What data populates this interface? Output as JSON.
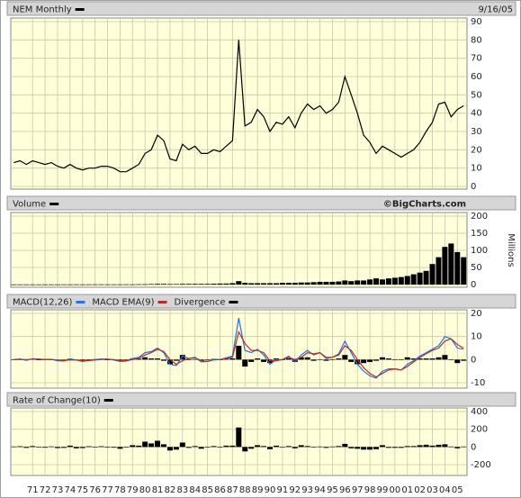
{
  "chart_data": [
    {
      "type": "line",
      "series": [
        {
          "name": "NEM Monthly",
          "color": "#000000",
          "values": [
            13,
            14,
            12,
            14,
            13,
            12,
            13,
            11,
            10,
            12,
            10,
            9,
            10,
            10,
            11,
            11,
            10,
            8,
            8,
            10,
            12,
            18,
            20,
            28,
            25,
            15,
            14,
            23,
            20,
            22,
            18,
            18,
            20,
            19,
            22,
            25,
            80,
            33,
            35,
            42,
            38,
            30,
            35,
            34,
            38,
            32,
            40,
            45,
            42,
            44,
            40,
            42,
            46,
            60,
            50,
            40,
            28,
            24,
            18,
            22,
            20,
            18,
            16,
            18,
            20,
            24,
            30,
            35,
            45,
            46,
            38,
            42,
            44
          ]
        }
      ],
      "date": "9/16/05",
      "x": [
        1969.5,
        1970,
        1970.5,
        1971,
        1971.5,
        1972,
        1972.5,
        1973,
        1973.5,
        1974,
        1974.5,
        1975,
        1975.5,
        1976,
        1976.5,
        1977,
        1977.5,
        1978,
        1978.5,
        1979,
        1979.5,
        1980,
        1980.5,
        1981,
        1981.5,
        1982,
        1982.5,
        1983,
        1983.5,
        1984,
        1984.5,
        1985,
        1985.5,
        1986,
        1986.5,
        1987,
        1987.5,
        1988,
        1988.5,
        1989,
        1989.5,
        1990,
        1990.5,
        1991,
        1991.5,
        1992,
        1992.5,
        1993,
        1993.5,
        1994,
        1994.5,
        1995,
        1995.5,
        1996,
        1996.5,
        1997,
        1997.5,
        1998,
        1998.5,
        1999,
        1999.5,
        2000,
        2000.5,
        2001,
        2001.5,
        2002,
        2002.5,
        2003,
        2003.5,
        2004,
        2004.5,
        2005,
        2005.5
      ],
      "xlim": [
        1969.4,
        2005.7
      ],
      "ylim": [
        0,
        90
      ],
      "yticks": [
        0,
        10,
        20,
        30,
        40,
        50,
        60,
        70,
        80,
        90
      ],
      "grid": true
    },
    {
      "type": "bar",
      "series": [
        {
          "name": "Volume",
          "color": "#000000",
          "values": [
            0.3,
            0.3,
            0.3,
            0.3,
            0.3,
            0.3,
            0.3,
            0.3,
            0.4,
            0.4,
            0.4,
            0.4,
            0.5,
            0.5,
            0.5,
            0.5,
            0.5,
            0.5,
            0.6,
            0.6,
            0.8,
            1,
            1.5,
            2,
            2,
            1.5,
            1.5,
            2,
            2,
            2,
            2,
            2,
            2.5,
            3,
            3,
            4,
            10,
            5,
            4,
            4,
            4,
            4,
            4,
            5,
            5,
            5,
            6,
            6,
            7,
            8,
            8,
            8,
            9,
            12,
            10,
            12,
            12,
            15,
            18,
            15,
            18,
            20,
            22,
            25,
            30,
            35,
            40,
            60,
            80,
            110,
            120,
            95,
            80
          ]
        }
      ],
      "credit": "©BigCharts.com",
      "y_label": "Millions",
      "x": [
        1969.5,
        1970,
        1970.5,
        1971,
        1971.5,
        1972,
        1972.5,
        1973,
        1973.5,
        1974,
        1974.5,
        1975,
        1975.5,
        1976,
        1976.5,
        1977,
        1977.5,
        1978,
        1978.5,
        1979,
        1979.5,
        1980,
        1980.5,
        1981,
        1981.5,
        1982,
        1982.5,
        1983,
        1983.5,
        1984,
        1984.5,
        1985,
        1985.5,
        1986,
        1986.5,
        1987,
        1987.5,
        1988,
        1988.5,
        1989,
        1989.5,
        1990,
        1990.5,
        1991,
        1991.5,
        1992,
        1992.5,
        1993,
        1993.5,
        1994,
        1994.5,
        1995,
        1995.5,
        1996,
        1996.5,
        1997,
        1997.5,
        1998,
        1998.5,
        1999,
        1999.5,
        2000,
        2000.5,
        2001,
        2001.5,
        2002,
        2002.5,
        2003,
        2003.5,
        2004,
        2004.5,
        2005,
        2005.5
      ],
      "xlim": [
        1969.4,
        2005.7
      ],
      "ylim": [
        0,
        200
      ],
      "yticks": [
        0,
        50,
        100,
        150,
        200
      ],
      "grid": true
    },
    {
      "type": "line",
      "series": [
        {
          "name": "MACD(12,26)",
          "color": "#2a6fdb",
          "values": [
            0,
            0.3,
            -0.3,
            0.4,
            0.2,
            0,
            0.1,
            -0.5,
            -0.6,
            0.3,
            -0.2,
            -0.8,
            -0.3,
            0,
            0.3,
            0.2,
            -0.2,
            -0.8,
            -0.6,
            0.5,
            1,
            3,
            3.5,
            5,
            3,
            -2,
            -2.5,
            1.5,
            0.5,
            1,
            -1,
            -0.8,
            0.2,
            0,
            0.8,
            1.5,
            18,
            4,
            3,
            4.5,
            2,
            -2,
            0,
            0,
            1.5,
            -1,
            2,
            4,
            2,
            3,
            0.5,
            1,
            2.5,
            8,
            3,
            -2,
            -5,
            -7,
            -8,
            -5,
            -4,
            -4,
            -4.5,
            -2,
            -0.5,
            1.5,
            3,
            4.5,
            6,
            10,
            9,
            5,
            4.5
          ]
        },
        {
          "name": "MACD EMA(9)",
          "color": "#b03030",
          "values": [
            0,
            0.1,
            0,
            0.2,
            0.2,
            0.1,
            0.1,
            -0.2,
            -0.4,
            -0.1,
            -0.2,
            -0.5,
            -0.4,
            -0.2,
            0.1,
            0.2,
            0,
            -0.5,
            -0.5,
            0,
            0.6,
            2,
            3,
            4.5,
            3.5,
            0,
            -2,
            -0.5,
            0.5,
            0.8,
            -0.5,
            -0.8,
            -0.1,
            0,
            0.5,
            1,
            12,
            7,
            4,
            4,
            3,
            -0.5,
            -0.5,
            0,
            1,
            0,
            1,
            3,
            2.5,
            3,
            1,
            1,
            2,
            6,
            4,
            0,
            -3.5,
            -6,
            -7.5,
            -6,
            -4.5,
            -4,
            -4.5,
            -3,
            -1,
            1,
            2.5,
            4,
            5,
            8,
            9,
            6.5,
            5
          ]
        },
        {
          "name": "Divergence",
          "color": "#000000",
          "kind": "bar",
          "values": [
            0,
            0.2,
            -0.3,
            0.2,
            0,
            -0.1,
            0,
            -0.3,
            -0.2,
            0.4,
            0,
            -0.3,
            0.1,
            0.2,
            0.2,
            0,
            -0.2,
            -0.3,
            -0.1,
            0.5,
            0.4,
            1,
            0.5,
            0.5,
            -0.5,
            -2,
            -0.5,
            2,
            0,
            0.2,
            -0.5,
            0,
            0.3,
            0,
            0.3,
            0.5,
            6,
            -3,
            -1,
            0.5,
            -1,
            -1.5,
            0.5,
            0,
            0.5,
            -1,
            1,
            1,
            -0.5,
            0,
            -0.5,
            0,
            0.5,
            2,
            -1,
            -2,
            -1.5,
            -1,
            -0.5,
            1,
            0.5,
            0,
            0,
            1,
            0.5,
            0.5,
            0.5,
            0.5,
            1,
            2,
            0,
            -1.5,
            -0.5
          ]
        }
      ],
      "x": [
        1969.5,
        1970,
        1970.5,
        1971,
        1971.5,
        1972,
        1972.5,
        1973,
        1973.5,
        1974,
        1974.5,
        1975,
        1975.5,
        1976,
        1976.5,
        1977,
        1977.5,
        1978,
        1978.5,
        1979,
        1979.5,
        1980,
        1980.5,
        1981,
        1981.5,
        1982,
        1982.5,
        1983,
        1983.5,
        1984,
        1984.5,
        1985,
        1985.5,
        1986,
        1986.5,
        1987,
        1987.5,
        1988,
        1988.5,
        1989,
        1989.5,
        1990,
        1990.5,
        1991,
        1991.5,
        1992,
        1992.5,
        1993,
        1993.5,
        1994,
        1994.5,
        1995,
        1995.5,
        1996,
        1996.5,
        1997,
        1997.5,
        1998,
        1998.5,
        1999,
        1999.5,
        2000,
        2000.5,
        2001,
        2001.5,
        2002,
        2002.5,
        2003,
        2003.5,
        2004,
        2004.5,
        2005,
        2005.5
      ],
      "xlim": [
        1969.4,
        2005.7
      ],
      "ylim": [
        -10,
        20
      ],
      "yticks": [
        -10,
        0,
        10,
        20
      ],
      "grid": true
    },
    {
      "type": "bar",
      "series": [
        {
          "name": "Rate of Change(10)",
          "color": "#000000",
          "values": [
            5,
            8,
            -10,
            10,
            -5,
            -8,
            6,
            -12,
            -10,
            15,
            -15,
            -12,
            8,
            0,
            8,
            0,
            -8,
            -20,
            -5,
            20,
            15,
            60,
            40,
            70,
            30,
            -40,
            -30,
            50,
            -10,
            10,
            -20,
            -5,
            10,
            -5,
            15,
            15,
            220,
            -50,
            -20,
            20,
            10,
            -25,
            15,
            -5,
            10,
            -15,
            20,
            10,
            -5,
            5,
            -10,
            5,
            10,
            35,
            -15,
            -20,
            -30,
            -30,
            -25,
            20,
            -10,
            -10,
            -10,
            10,
            10,
            20,
            25,
            15,
            25,
            30,
            5,
            -15,
            5
          ]
        }
      ],
      "x": [
        1969.5,
        1970,
        1970.5,
        1971,
        1971.5,
        1972,
        1972.5,
        1973,
        1973.5,
        1974,
        1974.5,
        1975,
        1975.5,
        1976,
        1976.5,
        1977,
        1977.5,
        1978,
        1978.5,
        1979,
        1979.5,
        1980,
        1980.5,
        1981,
        1981.5,
        1982,
        1982.5,
        1983,
        1983.5,
        1984,
        1984.5,
        1985,
        1985.5,
        1986,
        1986.5,
        1987,
        1987.5,
        1988,
        1988.5,
        1989,
        1989.5,
        1990,
        1990.5,
        1991,
        1991.5,
        1992,
        1992.5,
        1993,
        1993.5,
        1994,
        1994.5,
        1995,
        1995.5,
        1996,
        1996.5,
        1997,
        1997.5,
        1998,
        1998.5,
        1999,
        1999.5,
        2000,
        2000.5,
        2001,
        2001.5,
        2002,
        2002.5,
        2003,
        2003.5,
        2004,
        2004.5,
        2005,
        2005.5
      ],
      "xlim": [
        1969.4,
        2005.7
      ],
      "ylim": [
        -200,
        400
      ],
      "yticks": [
        -200,
        0,
        200,
        400
      ],
      "grid": true,
      "xticks": [
        {
          "value": 1971,
          "label": "71"
        },
        {
          "value": 1972,
          "label": "72"
        },
        {
          "value": 1973,
          "label": "73"
        },
        {
          "value": 1974,
          "label": "74"
        },
        {
          "value": 1975,
          "label": "75"
        },
        {
          "value": 1976,
          "label": "76"
        },
        {
          "value": 1977,
          "label": "77"
        },
        {
          "value": 1978,
          "label": "78"
        },
        {
          "value": 1979,
          "label": "79"
        },
        {
          "value": 1980,
          "label": "80"
        },
        {
          "value": 1981,
          "label": "81"
        },
        {
          "value": 1982,
          "label": "82"
        },
        {
          "value": 1983,
          "label": "83"
        },
        {
          "value": 1984,
          "label": "84"
        },
        {
          "value": 1985,
          "label": "85"
        },
        {
          "value": 1986,
          "label": "86"
        },
        {
          "value": 1987,
          "label": "87"
        },
        {
          "value": 1988,
          "label": "88"
        },
        {
          "value": 1989,
          "label": "89"
        },
        {
          "value": 1990,
          "label": "90"
        },
        {
          "value": 1991,
          "label": "91"
        },
        {
          "value": 1992,
          "label": "92"
        },
        {
          "value": 1993,
          "label": "93"
        },
        {
          "value": 1994,
          "label": "94"
        },
        {
          "value": 1995,
          "label": "95"
        },
        {
          "value": 1996,
          "label": "96"
        },
        {
          "value": 1997,
          "label": "97"
        },
        {
          "value": 1998,
          "label": "98"
        },
        {
          "value": 1999,
          "label": "99"
        },
        {
          "value": 2000,
          "label": "00"
        },
        {
          "value": 2001,
          "label": "01"
        },
        {
          "value": 2002,
          "label": "02"
        },
        {
          "value": 2003,
          "label": "03"
        },
        {
          "value": 2004,
          "label": "04"
        },
        {
          "value": 2005,
          "label": "05"
        }
      ]
    }
  ]
}
